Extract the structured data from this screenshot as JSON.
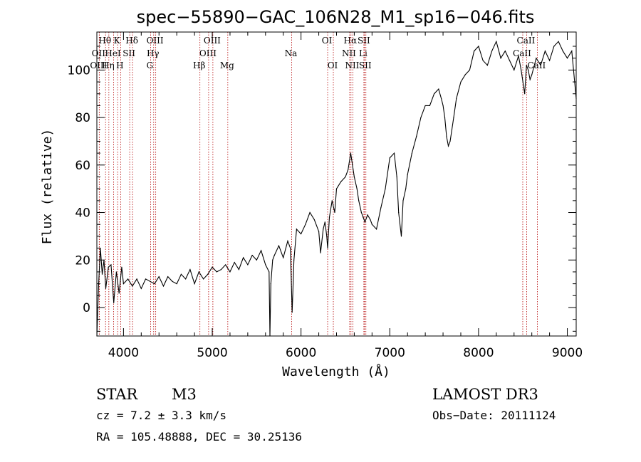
{
  "chart_data": {
    "type": "line",
    "title": "spec−55890−GAC_106N28_M1_sp16−046.fits",
    "xlabel": "Wavelength (Å)",
    "ylabel": "Flux (relative)",
    "xlim": [
      3700,
      9100
    ],
    "ylim": [
      -12,
      116
    ],
    "xticks": [
      4000,
      5000,
      6000,
      7000,
      8000,
      9000
    ],
    "yticks": [
      0,
      20,
      40,
      60,
      80,
      100
    ],
    "series": [
      {
        "name": "spectrum",
        "x": [
          3700,
          3720,
          3740,
          3760,
          3780,
          3800,
          3830,
          3860,
          3890,
          3920,
          3950,
          3980,
          4000,
          4050,
          4100,
          4150,
          4200,
          4250,
          4300,
          4350,
          4400,
          4450,
          4500,
          4550,
          4600,
          4650,
          4700,
          4750,
          4800,
          4850,
          4900,
          4950,
          5000,
          5050,
          5100,
          5150,
          5200,
          5250,
          5300,
          5350,
          5400,
          5450,
          5500,
          5550,
          5600,
          5640,
          5650,
          5660,
          5680,
          5700,
          5750,
          5800,
          5850,
          5880,
          5900,
          5920,
          5950,
          6000,
          6050,
          6100,
          6150,
          6200,
          6220,
          6250,
          6270,
          6290,
          6300,
          6320,
          6350,
          6380,
          6400,
          6450,
          6500,
          6530,
          6560,
          6580,
          6600,
          6630,
          6650,
          6680,
          6700,
          6720,
          6750,
          6780,
          6800,
          6850,
          6900,
          6950,
          7000,
          7050,
          7080,
          7100,
          7130,
          7150,
          7180,
          7200,
          7250,
          7300,
          7350,
          7400,
          7450,
          7500,
          7550,
          7580,
          7600,
          7620,
          7640,
          7660,
          7680,
          7700,
          7720,
          7750,
          7800,
          7850,
          7900,
          7950,
          8000,
          8050,
          8100,
          8150,
          8200,
          8250,
          8300,
          8350,
          8400,
          8450,
          8480,
          8500,
          8520,
          8540,
          8560,
          8580,
          8600,
          8650,
          8700,
          8750,
          8800,
          8850,
          8900,
          8950,
          9000,
          9050,
          9100
        ],
        "values": [
          -12,
          10,
          25,
          14,
          20,
          8,
          17,
          18,
          2,
          15,
          6,
          17,
          10,
          12,
          9,
          12,
          8,
          12,
          11,
          10,
          13,
          9,
          13,
          11,
          10,
          14,
          12,
          16,
          10,
          15,
          12,
          14,
          17,
          15,
          16,
          18,
          15,
          19,
          16,
          21,
          18,
          22,
          20,
          24,
          18,
          15,
          -12,
          10,
          20,
          22,
          26,
          21,
          28,
          25,
          -2,
          20,
          33,
          31,
          35,
          40,
          37,
          32,
          23,
          33,
          36,
          30,
          25,
          38,
          45,
          40,
          50,
          53,
          55,
          58,
          65,
          60,
          55,
          50,
          45,
          40,
          38,
          36,
          39,
          37,
          35,
          33,
          42,
          50,
          63,
          65,
          55,
          40,
          30,
          45,
          50,
          56,
          65,
          72,
          80,
          85,
          85,
          90,
          92,
          88,
          85,
          80,
          72,
          68,
          70,
          75,
          80,
          88,
          95,
          98,
          100,
          108,
          110,
          104,
          102,
          108,
          112,
          105,
          108,
          104,
          100,
          106,
          100,
          95,
          90,
          102,
          100,
          96,
          98,
          105,
          102,
          108,
          104,
          110,
          112,
          108,
          105,
          108,
          88
        ]
      }
    ],
    "emission_lines": [
      {
        "label": "Hθ",
        "wavelength": 3798,
        "row": 1
      },
      {
        "label": "OII",
        "wavelength": 3727,
        "row": 2
      },
      {
        "label": "OIII",
        "wavelength": 3727,
        "row": 3
      },
      {
        "label": "K",
        "wavelength": 3934,
        "row": 1
      },
      {
        "label": "HeI",
        "wavelength": 3889,
        "row": 2
      },
      {
        "label": "Hη",
        "wavelength": 3835,
        "row": 3
      },
      {
        "label": "Hδ",
        "wavelength": 4102,
        "row": 1
      },
      {
        "label": "SII",
        "wavelength": 4070,
        "row": 2
      },
      {
        "label": "H",
        "wavelength": 3968,
        "row": 3
      },
      {
        "label": "OIII",
        "wavelength": 4363,
        "row": 1
      },
      {
        "label": "Hγ",
        "wavelength": 4340,
        "row": 2
      },
      {
        "label": "G",
        "wavelength": 4305,
        "row": 3
      },
      {
        "label": "OIII",
        "wavelength": 5007,
        "row": 1
      },
      {
        "label": "OIII",
        "wavelength": 4959,
        "row": 2
      },
      {
        "label": "Hβ",
        "wavelength": 4861,
        "row": 3
      },
      {
        "label": "Mg",
        "wavelength": 5175,
        "row": 3
      },
      {
        "label": "Na",
        "wavelength": 5894,
        "row": 2
      },
      {
        "label": "OI",
        "wavelength": 6300,
        "row": 1
      },
      {
        "label": "OI",
        "wavelength": 6364,
        "row": 3
      },
      {
        "label": "Hα",
        "wavelength": 6563,
        "row": 1
      },
      {
        "label": "SII",
        "wavelength": 6716,
        "row": 1
      },
      {
        "label": "NII",
        "wavelength": 6548,
        "row": 2
      },
      {
        "label": "Li",
        "wavelength": 6708,
        "row": 2
      },
      {
        "label": "NII",
        "wavelength": 6584,
        "row": 3
      },
      {
        "label": "SII",
        "wavelength": 6731,
        "row": 3
      },
      {
        "label": "CaII",
        "wavelength": 8542,
        "row": 1
      },
      {
        "label": "CaII",
        "wavelength": 8498,
        "row": 2
      },
      {
        "label": "CaII",
        "wavelength": 8662,
        "row": 3
      }
    ]
  },
  "info": {
    "object_class": "STAR",
    "subclass": "M3",
    "survey": "LAMOST DR3",
    "cz": "cz = 7.2 ± 3.3 km/s",
    "obs_date": "Obs−Date: 20111124",
    "coords": "RA = 105.48888, DEC =  30.25136"
  }
}
